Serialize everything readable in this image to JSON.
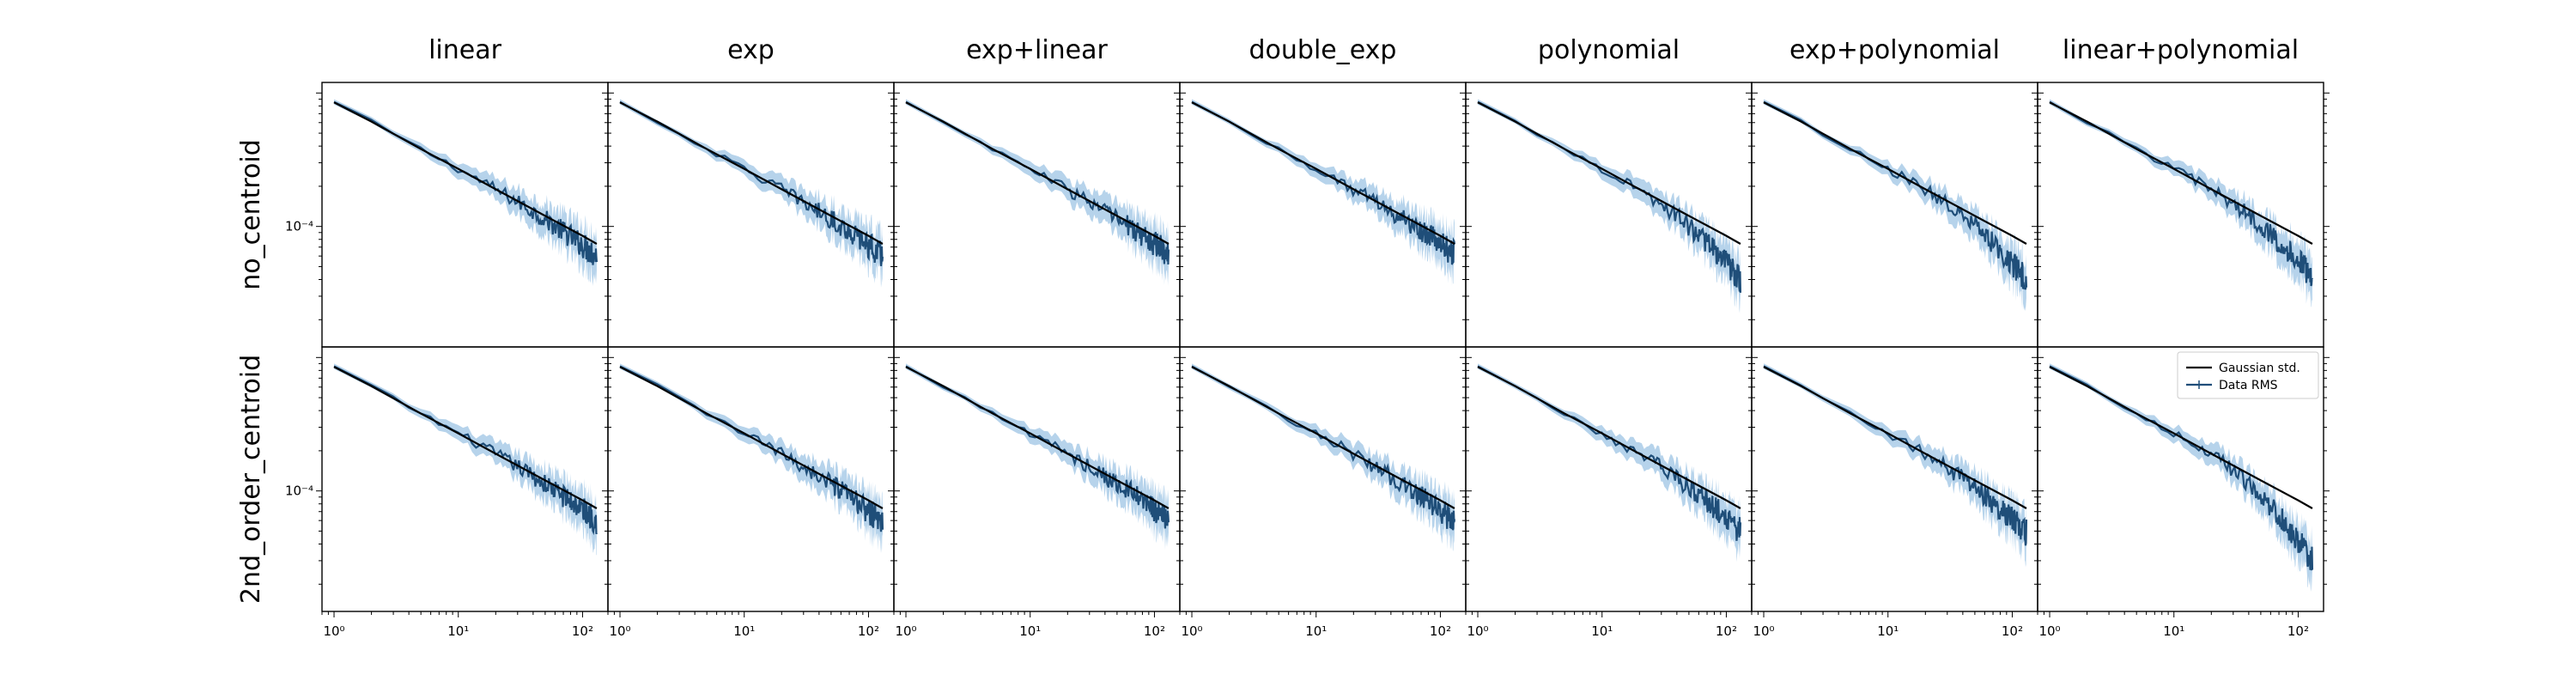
{
  "chart_data": {
    "type": "line",
    "layout": "grid",
    "columns": [
      "linear",
      "exp",
      "exp+linear",
      "double_exp",
      "polynomial",
      "exp+polynomial",
      "linear+polynomial"
    ],
    "rows": [
      "no_centroid",
      "2nd_order_centroid"
    ],
    "x_scale": "log",
    "y_scale": "log",
    "xlim": [
      0.8,
      160
    ],
    "ylim": [
      1.25e-05,
      0.0012
    ],
    "x_ticks": [
      1,
      10,
      100
    ],
    "x_tick_labels": [
      "10⁰",
      "10¹",
      "10²"
    ],
    "y_ticks": [
      0.0001
    ],
    "y_tick_labels": [
      "10⁻⁴"
    ],
    "legend": {
      "placement": "upper-right",
      "panel": "2nd_order_centroid / linear+polynomial",
      "entries": [
        "Gaussian std.",
        "Data RMS"
      ]
    },
    "colors": {
      "gaussian_std": "#000000",
      "data_rms": "#1f4e79",
      "data_rms_band": "#a9cbe8"
    },
    "series_definitions": [
      {
        "name": "Gaussian std.",
        "style": "line",
        "color": "#000000"
      },
      {
        "name": "Data RMS",
        "style": "line with shaded error band",
        "color": "#1f4e79"
      }
    ],
    "gaussian_std": {
      "x": [
        1,
        2,
        5,
        10,
        20,
        50,
        100,
        130
      ],
      "y": [
        0.00085,
        0.00061,
        0.00038,
        0.00027,
        0.00019,
        0.00012,
        8.5e-05,
        7.4e-05
      ]
    },
    "data_rms_approx": {
      "x": [
        1,
        2,
        5,
        10,
        20,
        50,
        100,
        130
      ],
      "y": [
        0.00085,
        0.0006,
        0.00037,
        0.00026,
        0.00018,
        0.00011,
        7e-05,
        5.8e-05
      ]
    },
    "tail_end_per_panel": [
      [
        6e-05,
        6e-05,
        6.2e-05,
        6.2e-05,
        4e-05,
        4e-05,
        4.2e-05
      ],
      [
        6e-05,
        5.8e-05,
        6e-05,
        5.8e-05,
        5e-05,
        4.8e-05,
        3e-05
      ]
    ]
  }
}
